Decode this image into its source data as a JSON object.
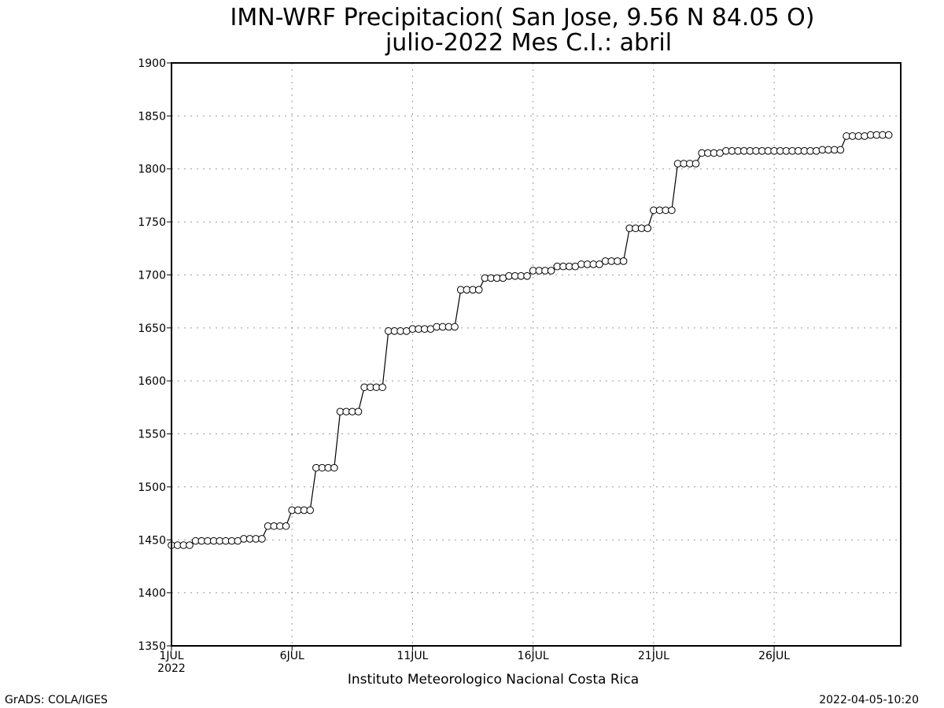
{
  "chart_data": {
    "type": "line",
    "title": "IMN-WRF  Precipitacion( San Jose, 9.56  N 84.05  O)",
    "subtitle": "julio-2022 Mes C.I.: abril",
    "xlabel": "Instituto Meteorologico Nacional Costa Rica",
    "ylabel": "",
    "ylim": [
      1350,
      1900
    ],
    "yticks": [
      1350,
      1400,
      1450,
      1500,
      1550,
      1600,
      1650,
      1700,
      1750,
      1800,
      1850,
      1900
    ],
    "xlim": [
      1,
      31.25
    ],
    "xticks": [
      {
        "value": 1,
        "label": "1JUL",
        "sublabel": "2022"
      },
      {
        "value": 6,
        "label": "6JUL",
        "sublabel": ""
      },
      {
        "value": 11,
        "label": "11JUL",
        "sublabel": ""
      },
      {
        "value": 16,
        "label": "16JUL",
        "sublabel": ""
      },
      {
        "value": 21,
        "label": "21JUL",
        "sublabel": ""
      },
      {
        "value": 26,
        "label": "26JUL",
        "sublabel": ""
      }
    ],
    "grid": true,
    "marker": "open-circle",
    "series": [
      {
        "start_day": 1,
        "step_days": 0.25,
        "values": [
          1445,
          1445,
          1445,
          1445,
          1449,
          1449,
          1449,
          1449,
          1449,
          1449,
          1449,
          1449,
          1451,
          1451,
          1451,
          1451,
          1463,
          1463,
          1463,
          1463,
          1478,
          1478,
          1478,
          1478,
          1518,
          1518,
          1518,
          1518,
          1571,
          1571,
          1571,
          1571,
          1594,
          1594,
          1594,
          1594,
          1647,
          1647,
          1647,
          1647,
          1649,
          1649,
          1649,
          1649,
          1651,
          1651,
          1651,
          1651,
          1686,
          1686,
          1686,
          1686,
          1697,
          1697,
          1697,
          1697,
          1699,
          1699,
          1699,
          1699,
          1704,
          1704,
          1704,
          1704,
          1708,
          1708,
          1708,
          1708,
          1710,
          1710,
          1710,
          1710,
          1713,
          1713,
          1713,
          1713,
          1744,
          1744,
          1744,
          1744,
          1761,
          1761,
          1761,
          1761,
          1805,
          1805,
          1805,
          1805,
          1815,
          1815,
          1815,
          1815,
          1817,
          1817,
          1817,
          1817,
          1817,
          1817,
          1817,
          1817,
          1817,
          1817,
          1817,
          1817,
          1817,
          1817,
          1817,
          1817,
          1818,
          1818,
          1818,
          1818,
          1831,
          1831,
          1831,
          1831,
          1832,
          1832,
          1832,
          1832
        ]
      }
    ]
  },
  "footer": {
    "left": "GrADS: COLA/IGES",
    "right": "2022-04-05-10:20"
  }
}
